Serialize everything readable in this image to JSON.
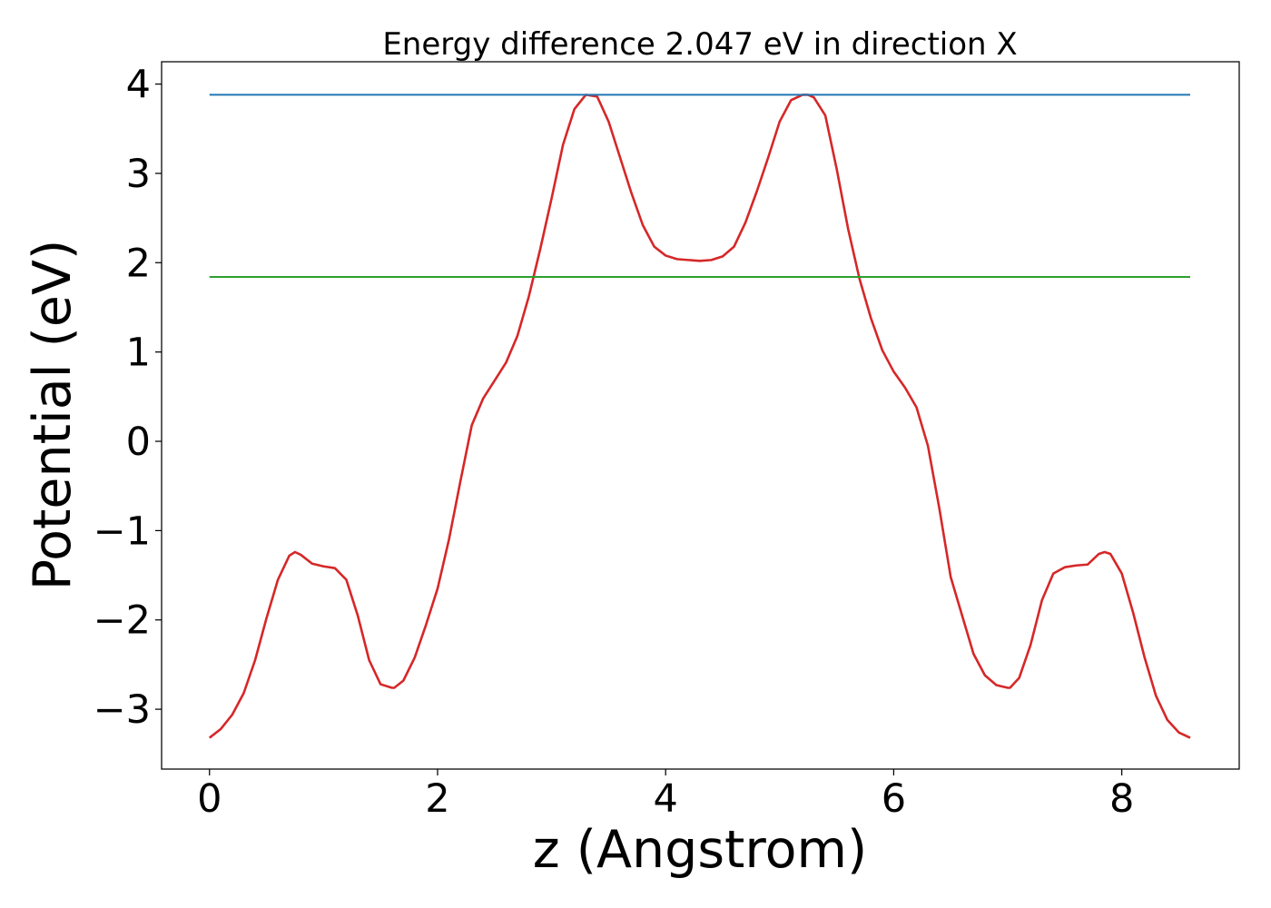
{
  "chart_data": {
    "type": "line",
    "title": "Energy difference 2.047 eV in direction X",
    "xlabel": "z (Angstrom)",
    "ylabel": "Potential (eV)",
    "xlim": [
      -0.42,
      9.03
    ],
    "ylim": [
      -3.67,
      4.25
    ],
    "xticks": [
      0,
      2,
      4,
      6,
      8
    ],
    "yticks": [
      -3,
      -2,
      -1,
      0,
      1,
      2,
      3,
      4
    ],
    "xtick_labels": [
      "0",
      "2",
      "4",
      "6",
      "8"
    ],
    "ytick_labels": [
      "−3",
      "−2",
      "−1",
      "0",
      "1",
      "2",
      "3",
      "4"
    ],
    "grid": false,
    "legend": "none",
    "series": [
      {
        "color": "#d62728",
        "x": [
          0.0,
          0.1,
          0.2,
          0.3,
          0.4,
          0.5,
          0.6,
          0.7,
          0.75,
          0.8,
          0.9,
          1.0,
          1.1,
          1.2,
          1.3,
          1.4,
          1.5,
          1.6,
          1.62,
          1.7,
          1.8,
          1.9,
          2.0,
          2.1,
          2.2,
          2.3,
          2.4,
          2.5,
          2.6,
          2.7,
          2.8,
          2.9,
          3.0,
          3.1,
          3.2,
          3.3,
          3.4,
          3.5,
          3.6,
          3.7,
          3.8,
          3.9,
          4.0,
          4.1,
          4.2,
          4.3,
          4.4,
          4.5,
          4.6,
          4.7,
          4.8,
          4.9,
          5.0,
          5.1,
          5.2,
          5.25,
          5.3,
          5.4,
          5.5,
          5.6,
          5.7,
          5.8,
          5.9,
          6.0,
          6.1,
          6.2,
          6.3,
          6.4,
          6.5,
          6.6,
          6.7,
          6.8,
          6.9,
          7.0,
          7.02,
          7.1,
          7.2,
          7.3,
          7.4,
          7.5,
          7.6,
          7.7,
          7.8,
          7.85,
          7.9,
          8.0,
          8.1,
          8.2,
          8.3,
          8.4,
          8.5,
          8.6
        ],
        "y": [
          -3.32,
          -3.22,
          -3.06,
          -2.82,
          -2.45,
          -1.98,
          -1.55,
          -1.28,
          -1.24,
          -1.27,
          -1.37,
          -1.4,
          -1.42,
          -1.55,
          -1.95,
          -2.45,
          -2.72,
          -2.76,
          -2.76,
          -2.68,
          -2.42,
          -2.05,
          -1.65,
          -1.1,
          -0.45,
          0.18,
          0.48,
          0.68,
          0.88,
          1.18,
          1.62,
          2.15,
          2.72,
          3.32,
          3.72,
          3.88,
          3.86,
          3.58,
          3.18,
          2.78,
          2.42,
          2.18,
          2.08,
          2.04,
          2.03,
          2.02,
          2.03,
          2.07,
          2.18,
          2.45,
          2.8,
          3.18,
          3.58,
          3.82,
          3.88,
          3.88,
          3.85,
          3.65,
          3.05,
          2.38,
          1.82,
          1.38,
          1.02,
          0.78,
          0.6,
          0.38,
          -0.05,
          -0.75,
          -1.52,
          -1.95,
          -2.38,
          -2.62,
          -2.73,
          -2.76,
          -2.76,
          -2.65,
          -2.28,
          -1.78,
          -1.48,
          -1.41,
          -1.39,
          -1.38,
          -1.26,
          -1.24,
          -1.26,
          -1.48,
          -1.92,
          -2.42,
          -2.85,
          -3.12,
          -3.26,
          -3.32
        ]
      },
      {
        "color": "#1f77b4",
        "x": [
          0.0,
          8.6
        ],
        "y": [
          3.88,
          3.88
        ]
      },
      {
        "color": "#2ca02c",
        "x": [
          0.0,
          8.6
        ],
        "y": [
          1.84,
          1.84
        ]
      }
    ]
  }
}
